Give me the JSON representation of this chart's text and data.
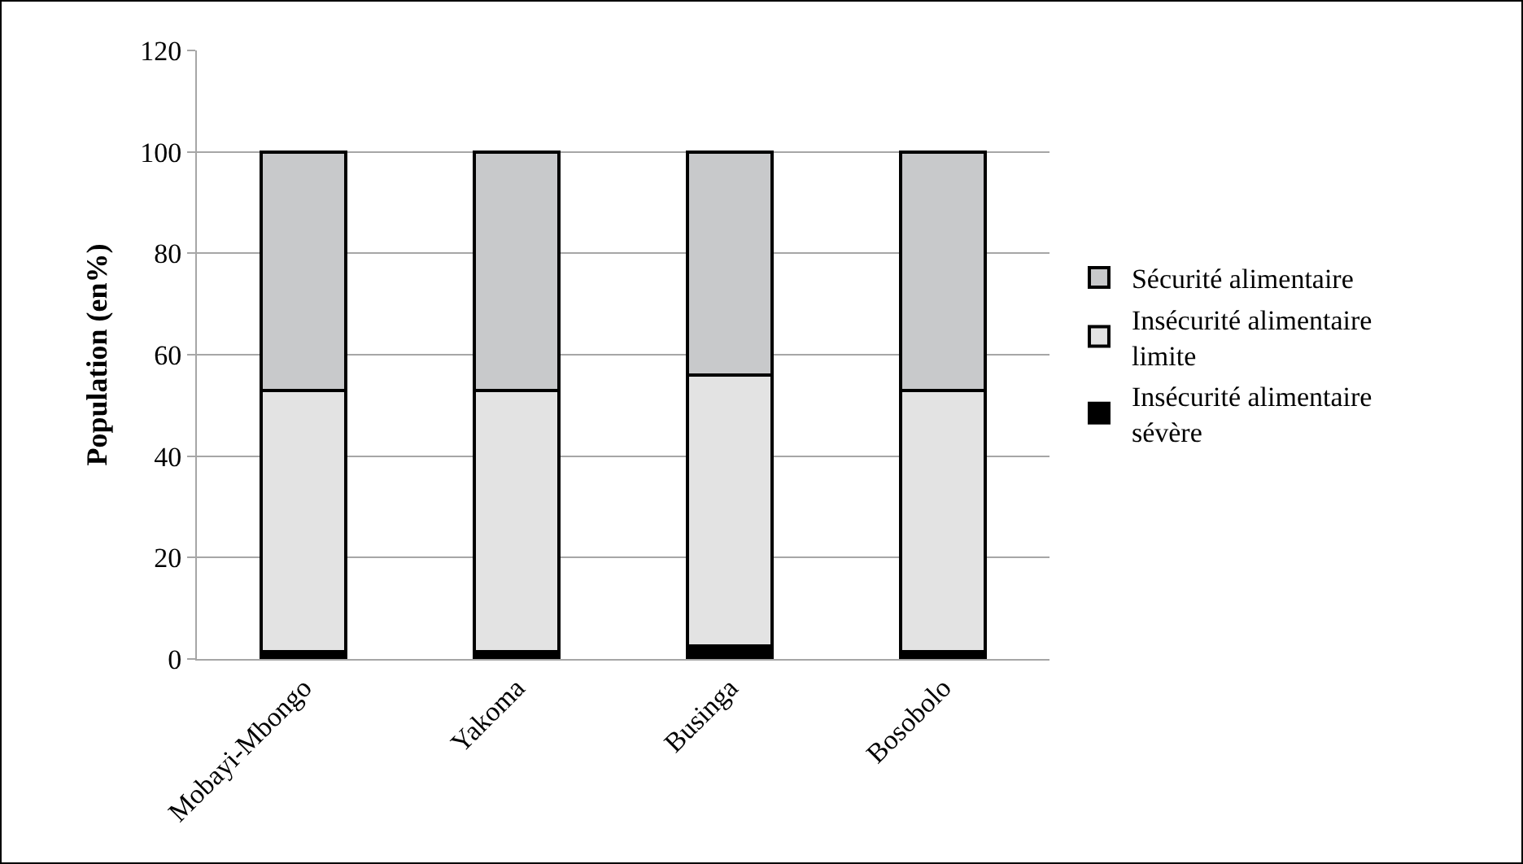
{
  "chart_data": {
    "type": "bar",
    "stacked": true,
    "ylabel": "Population (en%)",
    "categories": [
      "Mobayi-Mbongo",
      "Yakoma",
      "Businga",
      "Bosobolo"
    ],
    "series": [
      {
        "name": "Insécurité alimentaire sévère",
        "color": "#000000",
        "values": [
          1.5,
          1.5,
          2.5,
          1.5
        ]
      },
      {
        "name": "Insécurité alimentaire limite",
        "color": "#e3e3e3",
        "values": [
          51.5,
          51.5,
          53.5,
          51.5
        ]
      },
      {
        "name": "Sécurité alimentaire",
        "color": "#c8c9cb",
        "values": [
          47,
          47,
          44,
          47
        ]
      }
    ],
    "ylim": [
      0,
      120
    ],
    "yticks": [
      0,
      20,
      40,
      60,
      80,
      100,
      120
    ],
    "grid": "y",
    "legend": "right"
  }
}
